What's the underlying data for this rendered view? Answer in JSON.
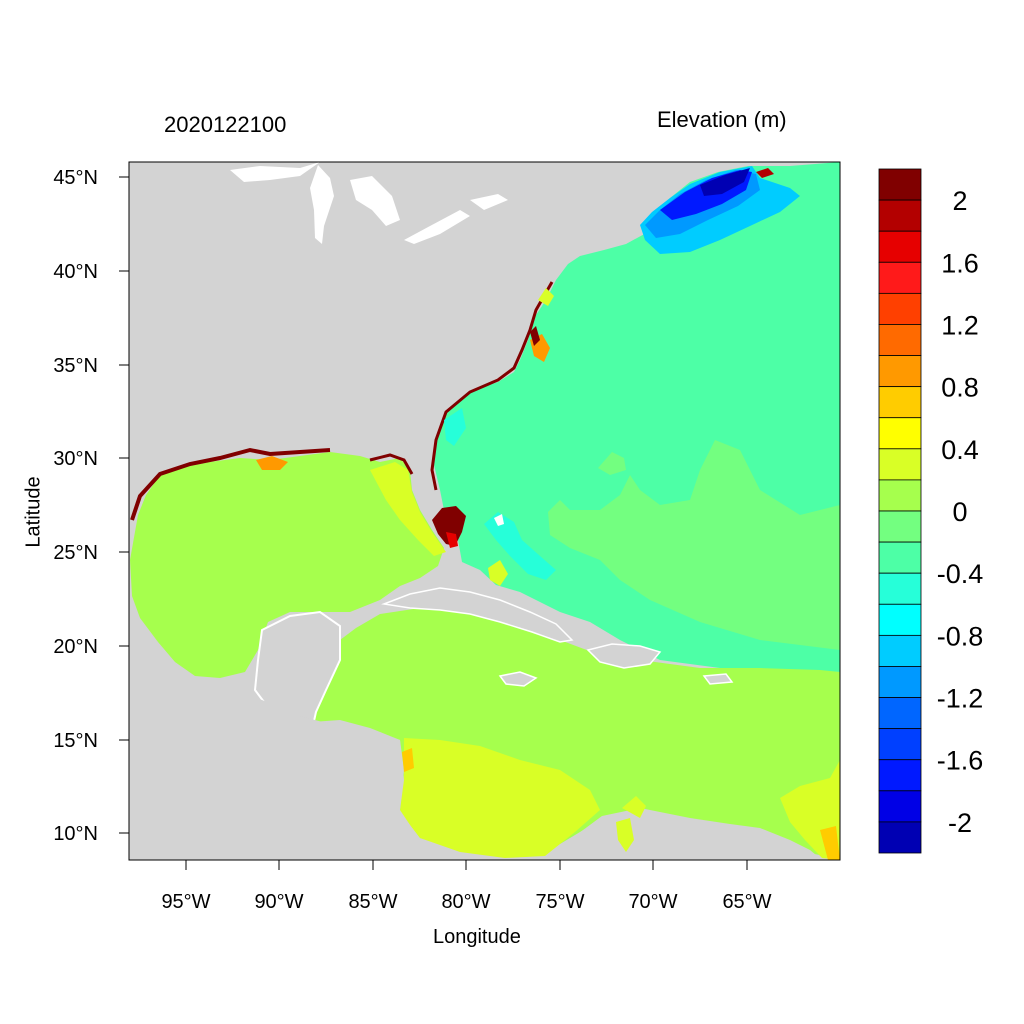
{
  "header": {
    "date": "2020122100",
    "variable": "Elevation (m)"
  },
  "axes": {
    "xlabel": "Longitude",
    "ylabel": "Latitude",
    "xticks": [
      "95°W",
      "90°W",
      "85°W",
      "80°W",
      "75°W",
      "70°W",
      "65°W"
    ],
    "yticks": [
      "45°N",
      "40°N",
      "35°N",
      "30°N",
      "25°N",
      "20°N",
      "15°N",
      "10°N"
    ]
  },
  "colorbar": {
    "labels": [
      "2",
      "1.6",
      "1.2",
      "0.8",
      "0.4",
      "0",
      "-0.4",
      "-0.8",
      "-1.2",
      "-1.6",
      "-2"
    ],
    "colors": [
      "#800000",
      "#b30000",
      "#e60000",
      "#ff1a1a",
      "#ff4000",
      "#ff6a00",
      "#ff9900",
      "#ffcc00",
      "#ffff00",
      "#d9ff26",
      "#a6ff4d",
      "#73ff80",
      "#4dffa6",
      "#26ffd9",
      "#00ffff",
      "#00ccff",
      "#0099ff",
      "#0066ff",
      "#0040ff",
      "#0019ff",
      "#0000e6",
      "#0000b3"
    ]
  },
  "colors": {
    "land": "#d3d3d3",
    "gulf": "#a6ff4d",
    "atlantic": "#4dffa6",
    "caribbean": "#a6ff4d",
    "south_caribbean": "#d9ff26"
  }
}
